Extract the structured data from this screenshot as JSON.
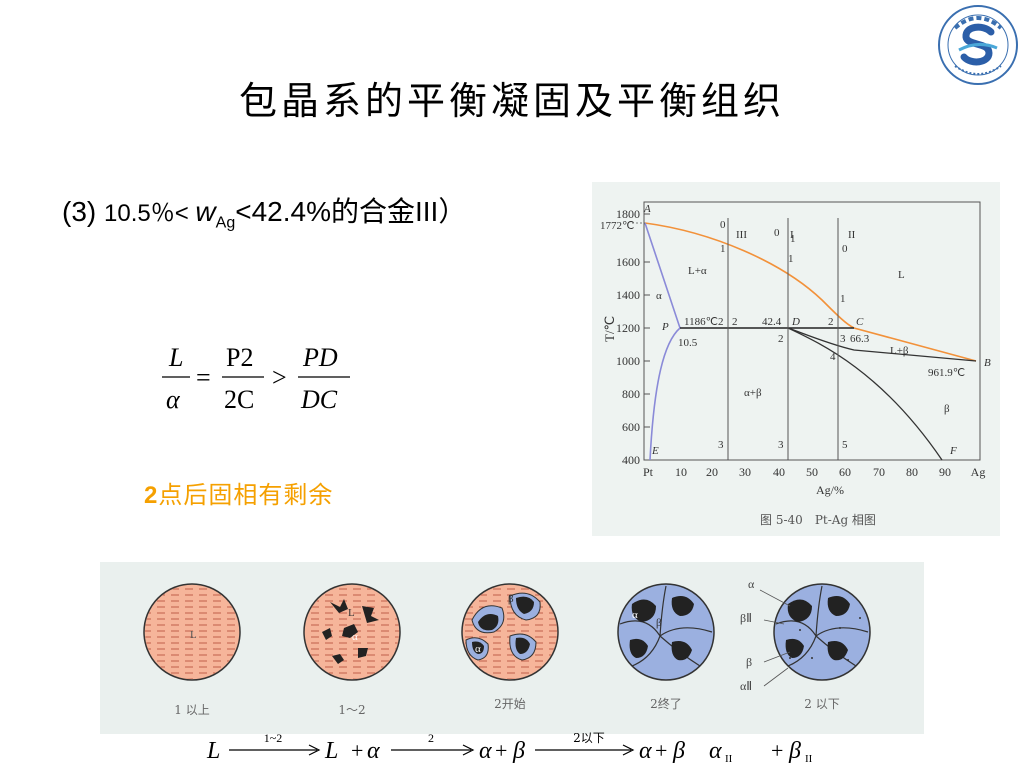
{
  "slide": {
    "title": "包晶系的平衡凝固及平衡组织",
    "alloy_label_num": "(3)",
    "alloy_label_a": "10.5％< ",
    "alloy_label_w": "w",
    "alloy_label_sub": "Ag",
    "alloy_label_b": "<42.4%的合金III）",
    "note_num": "2",
    "note_text": "点后固相有剩余"
  },
  "equation": {
    "lhs_num": "L",
    "lhs_den": "α",
    "eq": "=",
    "mid_num": "P2",
    "mid_den": "2C",
    "gt": ">",
    "rhs_num": "PD",
    "rhs_den": "DC"
  },
  "diagram": {
    "caption": "图 5-40　Pt-Ag 相图",
    "y_axis_label": "T/℃",
    "x_axis_label": "Ag/%",
    "y_ticks": [
      "400",
      "600",
      "800",
      "1000",
      "1200",
      "1400",
      "1600",
      "1800"
    ],
    "x_ticks": [
      "Pt",
      "10",
      "20",
      "30",
      "40",
      "50",
      "60",
      "70",
      "80",
      "90",
      "Ag"
    ],
    "labels": {
      "A": "A",
      "temp_1772": "1772℃",
      "III": "III",
      "II": "II",
      "I": "I",
      "L_alpha": "L+α",
      "L": "L",
      "alpha": "α",
      "P": "P",
      "temp_1186": "1186℃",
      "D": "D",
      "C": "C",
      "val_42_4": "42.4",
      "val_10_5": "10.5",
      "val_66_3": "66.3",
      "L_beta": "L+β",
      "B": "B",
      "temp_961": "961.9℃",
      "alpha_beta": "α+β",
      "beta": "β",
      "E": "E",
      "F": "F",
      "n0a": "0",
      "n0b": "0",
      "n0c": "0",
      "n1a": "1",
      "n1b": "1",
      "n1c": "1",
      "n1d": "1",
      "n2a": "2",
      "n2b": "2",
      "n2c": "2",
      "n2d": "2",
      "n3a": "3",
      "n3b": "3",
      "n3c": "3",
      "n4": "4",
      "n3d": "3",
      "n5": "5"
    }
  },
  "micro": {
    "captions": [
      "1 以上",
      "1～2",
      "2开始",
      "2终了",
      "2 以下"
    ],
    "labels": {
      "L1": "L",
      "L2": "L",
      "alpha2": "α",
      "alpha3": "α",
      "beta3": "β",
      "alpha4": "α",
      "beta4": "β",
      "side_alpha": "α",
      "side_beta2": "βⅡ",
      "side_beta": "β",
      "side_alpha2": "αⅡ"
    }
  },
  "reaction": {
    "L": "L",
    "arrow1": "1~2",
    "L2": "L",
    "plus": "+",
    "alpha": "α",
    "arrow2": "2",
    "alpha2": "α",
    "beta": "β",
    "arrow3": "2以下",
    "alpha3": "α",
    "beta2": "β",
    "alphaII": "α",
    "sub_II_a": "II",
    "betaII": "β",
    "sub_II_b": "II"
  }
}
